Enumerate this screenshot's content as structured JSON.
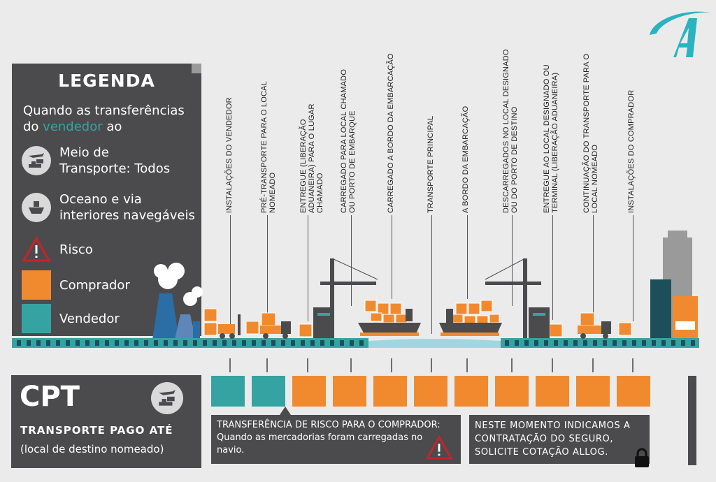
{
  "brand": {
    "logo_letter": "A"
  },
  "colors": {
    "buyer": "#f18a2e",
    "seller": "#36a3a3",
    "panel": "#4b4b4d",
    "risk": "#c8222b"
  },
  "legend": {
    "title": "LEGENDA",
    "subtitle_pre": "Quando as transferências do ",
    "subtitle_highlight": "vendedor",
    "subtitle_post": " ao",
    "items": [
      {
        "icon": "plane-truck-ship-icon",
        "label": "Meio de Transporte: Todos"
      },
      {
        "icon": "ship-icon",
        "label": "Oceano e via interiores navegáveis"
      },
      {
        "icon": "risk-warning-icon",
        "label": "Risco"
      },
      {
        "icon": "orange-square",
        "label": "Comprador"
      },
      {
        "icon": "teal-square",
        "label": "Vendedor"
      }
    ]
  },
  "stages": [
    {
      "label": "INSTALAÇÕES DO VENDEDOR",
      "responsibility": "seller"
    },
    {
      "label": "PRÉ-TRANSPORTE PARA O LOCAL NOMEADO",
      "responsibility": "seller"
    },
    {
      "label": "ENTREGUE (LIBERAÇÃO ADUANEIRA) PARA O LUGAR CHAMADO",
      "responsibility": "buyer"
    },
    {
      "label": "CARREGADO PARA LOCAL CHAMADO OU PORTO DE EMBARQUE",
      "responsibility": "buyer"
    },
    {
      "label": "CARREGADO A BORDO DA EMBARCAÇÃO",
      "responsibility": "buyer"
    },
    {
      "label": "TRANSPORTE PRINCIPAL",
      "responsibility": "buyer"
    },
    {
      "label": "A BORDO DA EMBARCAÇÃO",
      "responsibility": "buyer"
    },
    {
      "label": "DESCARREGADOS NO LOCAL DESIGNADO OU DO PORTO DE DESTINO",
      "responsibility": "buyer"
    },
    {
      "label": "ENTREGUE AO LOCAL DESIGNADO OU TERMINAL (LIBERAÇÃO ADUANEIRA)",
      "responsibility": "buyer"
    },
    {
      "label": "CONTINUAÇÃO DO TRANSPORTE PARA O LOCAL NOMEADO",
      "responsibility": "buyer"
    },
    {
      "label": "INSTALAÇÕES DO COMPRADOR",
      "responsibility": "buyer"
    }
  ],
  "incoterm": {
    "code": "CPT",
    "name": "TRANSPORTE PAGO ATÉ",
    "note": "(local de destino nomeado)"
  },
  "risk_box": {
    "title": "TRANSFERÊNCIA DE RISCO PARA O COMPRADOR:",
    "text": "Quando as mercadorias foram carregadas no navio."
  },
  "insurance_box": {
    "text": "NESTE MOMENTO INDICAMOS A CONTRATAÇÃO DO SEGURO, SOLICITE COTAÇÃO ALLOG."
  }
}
